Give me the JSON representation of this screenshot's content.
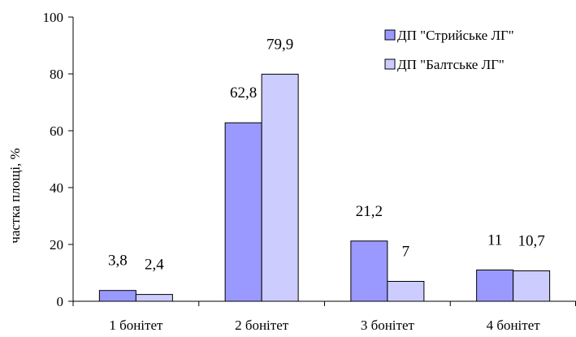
{
  "chart_data": {
    "type": "bar",
    "title": "",
    "xlabel": "",
    "ylabel": "частка площі, %",
    "ylim": [
      0,
      100
    ],
    "yticks": [
      0,
      20,
      40,
      60,
      80,
      100
    ],
    "grid": false,
    "legend_position": "top-right",
    "categories": [
      "1 бонітет",
      "2 бонітет",
      "3 бонітет",
      "4 бонітет"
    ],
    "series": [
      {
        "name": "ДП \"Стрийське ЛГ\"",
        "color": "#9999ff",
        "values": [
          3.8,
          62.8,
          21.2,
          11
        ],
        "labels": [
          "3,8",
          "62,8",
          "21,2",
          "11"
        ]
      },
      {
        "name": "ДП \"Балтське ЛГ\"",
        "color": "#ccccff",
        "values": [
          2.4,
          79.9,
          7,
          10.7
        ],
        "labels": [
          "2,4",
          "79,9",
          "7",
          "10,7"
        ]
      }
    ]
  }
}
